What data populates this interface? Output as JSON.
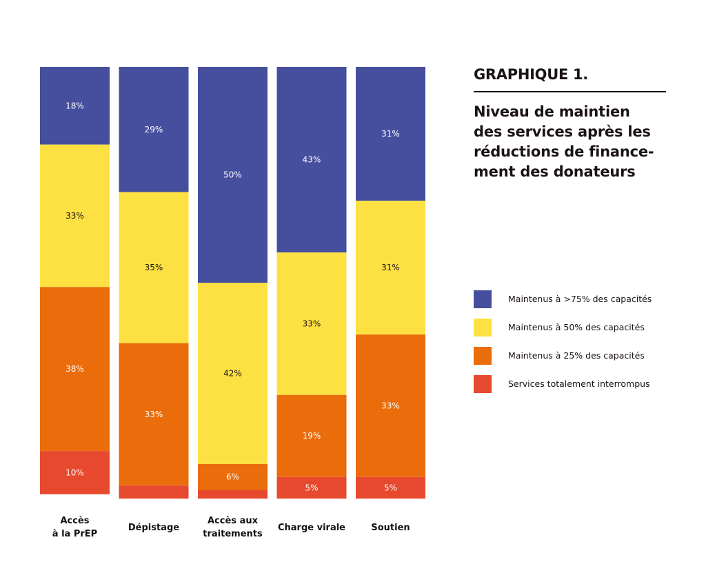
{
  "header": {
    "graph_number": "GRAPHIQUE 1.",
    "title": "Niveau de maintien des services après les réductions de finance-ment des donateurs",
    "title_lines": [
      "Niveau de maintien",
      "des services après les",
      "réductions de finance-",
      "ment des donateurs"
    ]
  },
  "chart_data": {
    "type": "bar",
    "stacked": true,
    "normalized": true,
    "title": "GRAPHIQUE 1. Niveau de maintien des services après les réductions de financement des donateurs",
    "xlabel": "",
    "ylabel": "",
    "ylim": [
      0,
      100
    ],
    "grid": false,
    "legend_position": "right",
    "categories": [
      [
        "Accès",
        "à la PrEP"
      ],
      [
        "Dépistage"
      ],
      [
        "Accès aux",
        "traitements"
      ],
      [
        "Charge virale"
      ],
      [
        "Soutien"
      ]
    ],
    "series": [
      {
        "name": "Maintenus à >75% des capacités",
        "color": "#464f9e",
        "text_color": "#ffffff",
        "values": [
          18,
          29,
          50,
          43,
          31
        ],
        "labels": [
          "18%",
          "29%",
          "50%",
          "43%",
          "31%"
        ]
      },
      {
        "name": "Maintenus à 50% des capacités",
        "color": "#fde143",
        "text_color": "#1a1214",
        "values": [
          33,
          35,
          42,
          33,
          31
        ],
        "labels": [
          "33%",
          "35%",
          "42%",
          "33%",
          "31%"
        ]
      },
      {
        "name": "Maintenus à 25% des capacités",
        "color": "#ea6c0a",
        "text_color": "#ffffff",
        "values": [
          38,
          33,
          6,
          19,
          33
        ],
        "labels": [
          "38%",
          "33%",
          "6%",
          "19%",
          "33%"
        ]
      },
      {
        "name": "Services totalement interrompus",
        "color": "#e6492d",
        "text_color": "#ffffff",
        "values": [
          10,
          3,
          2,
          5,
          5
        ],
        "labels": [
          "10%",
          "",
          "",
          "5%",
          "5%"
        ]
      }
    ]
  }
}
